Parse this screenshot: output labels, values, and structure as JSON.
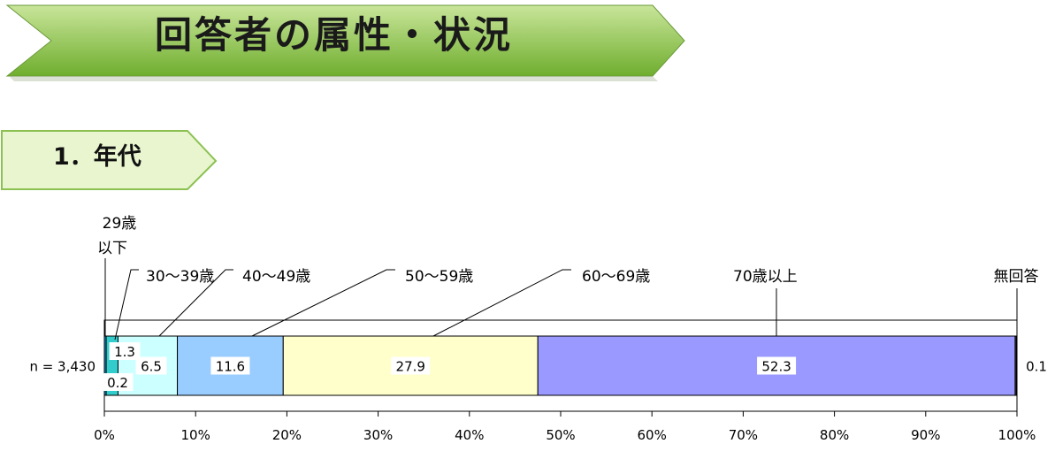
{
  "banner": {
    "title": "回答者の属性・状況"
  },
  "section": {
    "label": "1．年代"
  },
  "colors": {
    "banner_fill_light": "#c9e59a",
    "banner_fill_dark": "#6fae2e",
    "section_fill": "#e8f5cf",
    "section_stroke": "#8cc152"
  },
  "chart_data": {
    "type": "bar",
    "orientation": "horizontal-stacked-100",
    "row_label": "n = 3,430",
    "categories": [
      "29歳\n以下",
      "30～39歳",
      "40～49歳",
      "50～59歳",
      "60～69歳",
      "70歳以上",
      "無回答"
    ],
    "series": [
      {
        "name": "29歳\n以下",
        "value": 0.2,
        "color": "#1f9bd7"
      },
      {
        "name": "30～39歳",
        "value": 1.3,
        "color": "#33cccc"
      },
      {
        "name": "40～49歳",
        "value": 6.5,
        "color": "#ccffff"
      },
      {
        "name": "50～59歳",
        "value": 11.6,
        "color": "#99ccff"
      },
      {
        "name": "60～69歳",
        "value": 27.9,
        "color": "#ffffcc"
      },
      {
        "name": "70歳以上",
        "value": 52.3,
        "color": "#9999ff"
      },
      {
        "name": "無回答",
        "value": 0.1,
        "color": "#333333"
      }
    ],
    "data_labels": [
      "0.2",
      "1.3",
      "6.5",
      "11.6",
      "27.9",
      "52.3",
      "0.1"
    ],
    "xlim": [
      0,
      100
    ],
    "xticks": [
      "0%",
      "10%",
      "20%",
      "30%",
      "40%",
      "50%",
      "60%",
      "70%",
      "80%",
      "90%",
      "100%"
    ]
  }
}
